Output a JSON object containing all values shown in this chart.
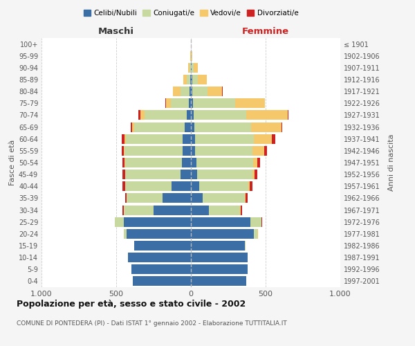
{
  "age_groups": [
    "0-4",
    "5-9",
    "10-14",
    "15-19",
    "20-24",
    "25-29",
    "30-34",
    "35-39",
    "40-44",
    "45-49",
    "50-54",
    "55-59",
    "60-64",
    "65-69",
    "70-74",
    "75-79",
    "80-84",
    "85-89",
    "90-94",
    "95-99",
    "100+"
  ],
  "birth_years": [
    "1997-2001",
    "1992-1996",
    "1987-1991",
    "1982-1986",
    "1977-1981",
    "1972-1976",
    "1967-1971",
    "1962-1966",
    "1957-1961",
    "1952-1956",
    "1947-1951",
    "1942-1946",
    "1937-1941",
    "1932-1936",
    "1927-1931",
    "1922-1926",
    "1917-1921",
    "1912-1916",
    "1907-1911",
    "1902-1906",
    "≤ 1901"
  ],
  "maschi": {
    "celibi": [
      390,
      400,
      420,
      380,
      430,
      450,
      250,
      190,
      130,
      70,
      60,
      55,
      55,
      40,
      30,
      15,
      10,
      4,
      2,
      0,
      0
    ],
    "coniugati": [
      0,
      0,
      0,
      0,
      20,
      60,
      200,
      240,
      310,
      370,
      380,
      390,
      380,
      340,
      280,
      120,
      60,
      25,
      8,
      2,
      0
    ],
    "vedovi": [
      0,
      0,
      0,
      0,
      0,
      0,
      0,
      0,
      2,
      2,
      3,
      3,
      8,
      15,
      30,
      30,
      50,
      20,
      10,
      2,
      0
    ],
    "divorziati": [
      0,
      0,
      0,
      0,
      0,
      0,
      8,
      10,
      15,
      15,
      15,
      15,
      20,
      10,
      10,
      8,
      2,
      0,
      0,
      0,
      0
    ]
  },
  "femmine": {
    "nubili": [
      370,
      380,
      380,
      360,
      420,
      400,
      120,
      80,
      55,
      40,
      35,
      30,
      30,
      25,
      20,
      15,
      10,
      8,
      5,
      2,
      0
    ],
    "coniugate": [
      0,
      0,
      0,
      5,
      25,
      70,
      210,
      280,
      330,
      370,
      380,
      380,
      390,
      380,
      350,
      280,
      100,
      40,
      15,
      2,
      0
    ],
    "vedove": [
      0,
      0,
      0,
      0,
      2,
      2,
      3,
      5,
      8,
      15,
      30,
      80,
      120,
      200,
      280,
      200,
      100,
      60,
      25,
      5,
      0
    ],
    "divorziate": [
      0,
      0,
      0,
      0,
      0,
      5,
      8,
      15,
      20,
      20,
      20,
      20,
      25,
      5,
      5,
      2,
      2,
      0,
      0,
      0,
      0
    ]
  },
  "colors": {
    "celibi": "#3a6ea5",
    "coniugati": "#c8d9a0",
    "vedovi": "#f5c96b",
    "divorziati": "#cc2222"
  },
  "title": "Popolazione per età, sesso e stato civile - 2002",
  "subtitle": "COMUNE DI PONTEDERA (PI) - Dati ISTAT 1° gennaio 2002 - Elaborazione TUTTITALIA.IT",
  "xlabel_left": "Maschi",
  "xlabel_right": "Femmine",
  "ylabel_left": "Fasce di età",
  "ylabel_right": "Anni di nascita",
  "legend_labels": [
    "Celibi/Nubili",
    "Coniugati/e",
    "Vedovi/e",
    "Divorziati/e"
  ],
  "xlim": 1000,
  "bg_color": "#f5f5f5",
  "plot_bg_color": "#ffffff"
}
